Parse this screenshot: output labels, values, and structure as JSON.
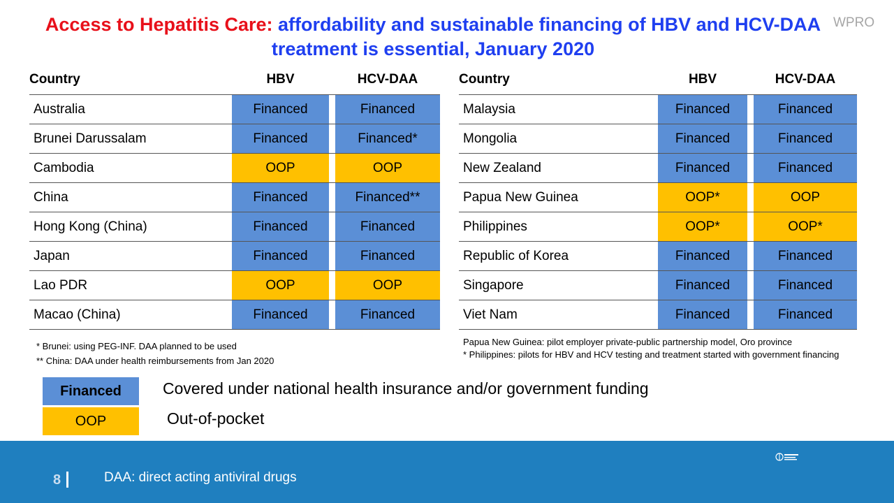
{
  "title": {
    "part_red": "Access to Hepatitis Care:",
    "part_blue": "affordability and sustainable financing of HBV and HCV-DAA treatment is essential, January 2020"
  },
  "corner_label": "WPRO",
  "table_headers": {
    "country": "Country",
    "hbv": "HBV",
    "hcv": "HCV-DAA"
  },
  "left_table": [
    {
      "country": "Australia",
      "hbv": "Financed",
      "hcv": "Financed"
    },
    {
      "country": "Brunei Darussalam",
      "hbv": "Financed",
      "hcv": "Financed*"
    },
    {
      "country": "Cambodia",
      "hbv": "OOP",
      "hcv": "OOP"
    },
    {
      "country": "China",
      "hbv": "Financed",
      "hcv": "Financed**"
    },
    {
      "country": "Hong Kong (China)",
      "hbv": "Financed",
      "hcv": "Financed"
    },
    {
      "country": "Japan",
      "hbv": "Financed",
      "hcv": "Financed"
    },
    {
      "country": "Lao PDR",
      "hbv": "OOP",
      "hcv": "OOP"
    },
    {
      "country": "Macao (China)",
      "hbv": "Financed",
      "hcv": "Financed"
    }
  ],
  "right_table": [
    {
      "country": "Malaysia",
      "hbv": "Financed",
      "hcv": "Financed"
    },
    {
      "country": "Mongolia",
      "hbv": "Financed",
      "hcv": "Financed"
    },
    {
      "country": "New Zealand",
      "hbv": "Financed",
      "hcv": "Financed"
    },
    {
      "country": "Papua New Guinea",
      "hbv": "OOP*",
      "hcv": "OOP"
    },
    {
      "country": "Philippines",
      "hbv": "OOP*",
      "hcv": "OOP*"
    },
    {
      "country": "Republic of Korea",
      "hbv": "Financed",
      "hcv": "Financed"
    },
    {
      "country": "Singapore",
      "hbv": "Financed",
      "hcv": "Financed"
    },
    {
      "country": "Viet Nam",
      "hbv": "Financed",
      "hcv": "Financed"
    }
  ],
  "notes_left": [
    "* Brunei: using PEG-INF.  DAA planned to be used",
    "** China: DAA under health reimbursements from Jan 2020"
  ],
  "notes_right": [
    "Papua New Guinea: pilot employer private-public partnership model, Oro province",
    "* Philippines: pilots for HBV and HCV testing and treatment started with government financing"
  ],
  "legend": {
    "financed_label": "Financed",
    "financed_text": "Covered under national health insurance and/or government funding",
    "oop_label": "OOP",
    "oop_text": "Out-of-pocket"
  },
  "footer": {
    "page_number": "8",
    "abbreviation": "DAA:  direct acting antiviral drugs"
  },
  "colors": {
    "financed": "#5b8fd6",
    "oop": "#ffc000",
    "footer": "#1f7fbf",
    "title_red": "#e8101a",
    "title_blue": "#1f3ff0"
  }
}
